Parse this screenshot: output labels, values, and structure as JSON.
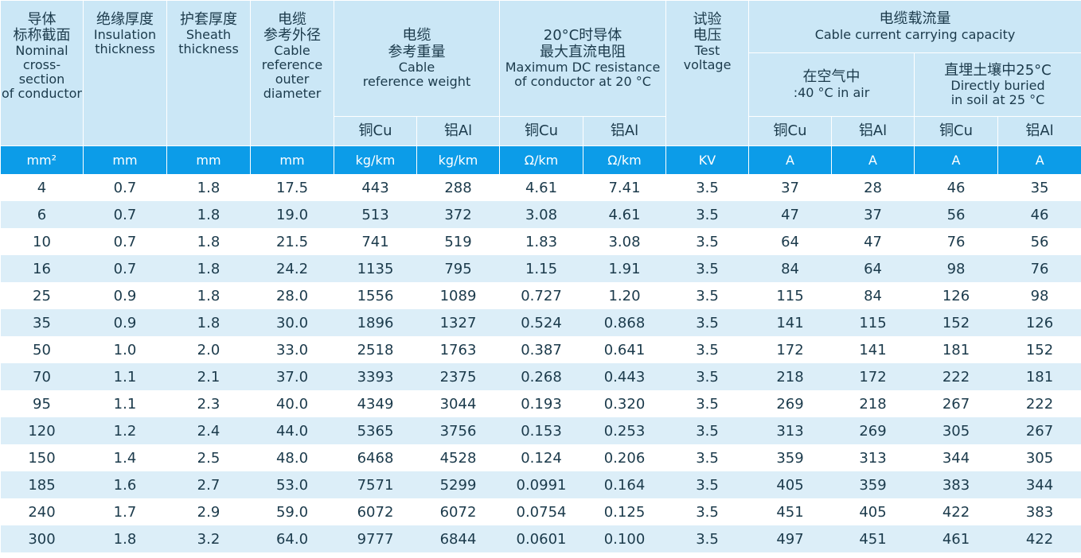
{
  "headers": {
    "conductor": {
      "zh": "导体\n标称截面",
      "en": "Nominal\ncross-section\nof conductor"
    },
    "insulation": {
      "zh": "绝缘厚度",
      "en": "Insulation\nthickness"
    },
    "sheath": {
      "zh": "护套厚度",
      "en": "Sheath\nthickness"
    },
    "diameter": {
      "zh": "电缆\n参考外径",
      "en": "Cable\nreference\nouter\ndiameter"
    },
    "weight": {
      "zh": "电缆\n参考重量",
      "en": "Cable\nreference weight"
    },
    "resistance": {
      "zh": "20°C时导体\n最大直流电阻",
      "en": "Maximum DC resistance\nof conductor at 20 °C"
    },
    "test_voltage": {
      "zh": "试验\n电压",
      "en": "Test\nvoltage"
    },
    "capacity": {
      "zh": "电缆载流量",
      "en": "Cable current carrying capacity"
    },
    "in_air": {
      "zh": "在空气中",
      "en": ":40 °C in air"
    },
    "in_soil": {
      "zh": "直埋土壤中25°C",
      "en": "Directly buried\nin soil at 25 °C"
    },
    "cu": "铜Cu",
    "al": "铝Al"
  },
  "units": [
    "mm²",
    "mm",
    "mm",
    "mm",
    "kg/km",
    "kg/km",
    "Ω/km",
    "Ω/km",
    "KV",
    "A",
    "A",
    "A",
    "A"
  ],
  "rows": [
    [
      "4",
      "0.7",
      "1.8",
      "17.5",
      "443",
      "288",
      "4.61",
      "7.41",
      "3.5",
      "37",
      "28",
      "46",
      "35"
    ],
    [
      "6",
      "0.7",
      "1.8",
      "19.0",
      "513",
      "372",
      "3.08",
      "4.61",
      "3.5",
      "47",
      "37",
      "56",
      "46"
    ],
    [
      "10",
      "0.7",
      "1.8",
      "21.5",
      "741",
      "519",
      "1.83",
      "3.08",
      "3.5",
      "64",
      "47",
      "76",
      "56"
    ],
    [
      "16",
      "0.7",
      "1.8",
      "24.2",
      "1135",
      "795",
      "1.15",
      "1.91",
      "3.5",
      "84",
      "64",
      "98",
      "76"
    ],
    [
      "25",
      "0.9",
      "1.8",
      "28.0",
      "1556",
      "1089",
      "0.727",
      "1.20",
      "3.5",
      "115",
      "84",
      "126",
      "98"
    ],
    [
      "35",
      "0.9",
      "1.8",
      "30.0",
      "1896",
      "1327",
      "0.524",
      "0.868",
      "3.5",
      "141",
      "115",
      "152",
      "126"
    ],
    [
      "50",
      "1.0",
      "2.0",
      "33.0",
      "2518",
      "1763",
      "0.387",
      "0.641",
      "3.5",
      "172",
      "141",
      "181",
      "152"
    ],
    [
      "70",
      "1.1",
      "2.1",
      "37.0",
      "3393",
      "2375",
      "0.268",
      "0.443",
      "3.5",
      "218",
      "172",
      "222",
      "181"
    ],
    [
      "95",
      "1.1",
      "2.3",
      "40.0",
      "4349",
      "3044",
      "0.193",
      "0.320",
      "3.5",
      "269",
      "218",
      "267",
      "222"
    ],
    [
      "120",
      "1.2",
      "2.4",
      "44.0",
      "5365",
      "3756",
      "0.153",
      "0.253",
      "3.5",
      "313",
      "269",
      "305",
      "267"
    ],
    [
      "150",
      "1.4",
      "2.5",
      "48.0",
      "6468",
      "4528",
      "0.124",
      "0.206",
      "3.5",
      "359",
      "313",
      "344",
      "305"
    ],
    [
      "185",
      "1.6",
      "2.7",
      "53.0",
      "7571",
      "5299",
      "0.0991",
      "0.164",
      "3.5",
      "405",
      "359",
      "383",
      "344"
    ],
    [
      "240",
      "1.7",
      "2.9",
      "59.0",
      "6072",
      "6072",
      "0.0754",
      "0.125",
      "3.5",
      "451",
      "405",
      "422",
      "383"
    ],
    [
      "300",
      "1.8",
      "3.2",
      "64.0",
      "9777",
      "6844",
      "0.0601",
      "0.100",
      "3.5",
      "497",
      "451",
      "461",
      "422"
    ]
  ],
  "colors": {
    "header_bg": "#cbe7f6",
    "unit_bar": "#0c9ce8",
    "stripe": "#dceef8",
    "text": "#1b3a4b"
  }
}
